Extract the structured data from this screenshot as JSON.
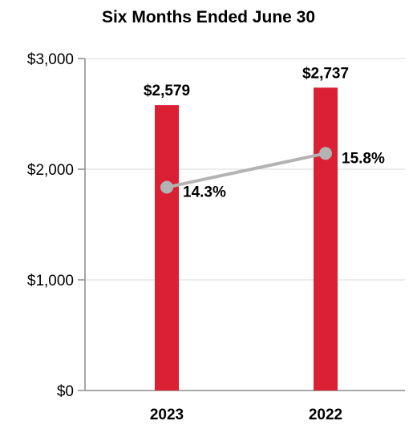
{
  "chart_data": {
    "type": "bar",
    "title": "Six Months Ended June 30",
    "xlabel": "",
    "ylabel": "",
    "categories": [
      "2023",
      "2022"
    ],
    "series": [
      {
        "values": [
          2579,
          2737
        ],
        "value_labels": [
          "$2,579",
          "$2,737"
        ],
        "color": "#DA2032"
      },
      {
        "type": "line",
        "values": [
          14.3,
          15.8
        ],
        "value_labels": [
          "14.3%",
          "15.8%"
        ],
        "unit": "%",
        "color": "#B3B3B3"
      }
    ],
    "ylim": [
      0,
      3000
    ],
    "yticks": [
      0,
      1000,
      2000,
      3000
    ],
    "ytick_labels": [
      "$0",
      "$1,000",
      "$2,000",
      "$3,000"
    ],
    "grid": true
  }
}
